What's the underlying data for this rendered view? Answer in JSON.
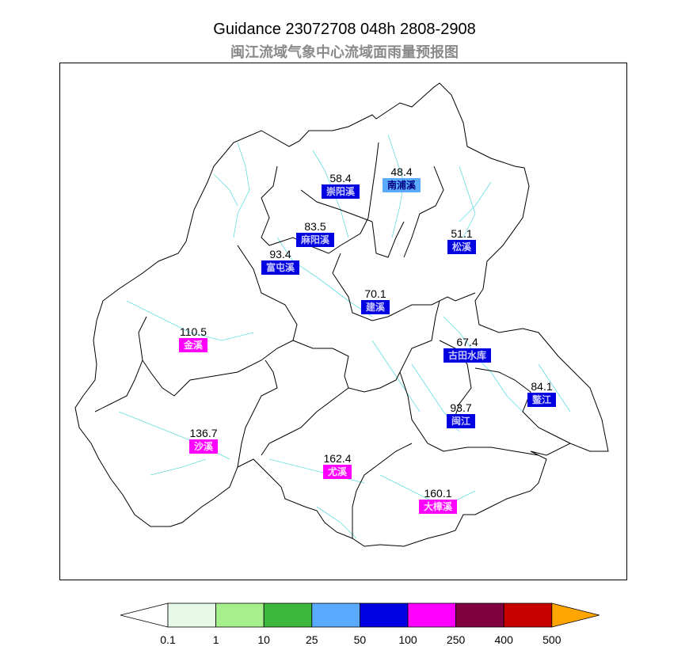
{
  "title": "Guidance 23072708 048h 2808-2908",
  "subtitle": "闽江流域气象中心流域面雨量预报图",
  "regions": [
    {
      "name": "崇阳溪",
      "value": "58.4",
      "category": "50-100",
      "color": "#0000e0",
      "text_color": "#c8c8ff"
    },
    {
      "name": "南浦溪",
      "value": "48.4",
      "category": "25-50",
      "color": "#5aabff",
      "text_color": "#000080"
    },
    {
      "name": "麻阳溪",
      "value": "83.5",
      "category": "50-100",
      "color": "#0000e0",
      "text_color": "#c8c8ff"
    },
    {
      "name": "富屯溪",
      "value": "93.4",
      "category": "50-100",
      "color": "#0000e0",
      "text_color": "#c8c8ff"
    },
    {
      "name": "松溪",
      "value": "51.1",
      "category": "50-100",
      "color": "#0000e0",
      "text_color": "#c8c8ff"
    },
    {
      "name": "建溪",
      "value": "70.1",
      "category": "50-100",
      "color": "#0000e0",
      "text_color": "#c8c8ff"
    },
    {
      "name": "金溪",
      "value": "110.5",
      "category": "100-250",
      "color": "#ff00ff",
      "text_color": "#ffe0ff"
    },
    {
      "name": "古田水库",
      "value": "67.4",
      "category": "50-100",
      "color": "#0000e0",
      "text_color": "#c8c8ff"
    },
    {
      "name": "鳌江",
      "value": "84.1",
      "category": "50-100",
      "color": "#0000e0",
      "text_color": "#c8c8ff"
    },
    {
      "name": "闽江",
      "value": "93.7",
      "category": "50-100",
      "color": "#0000e0",
      "text_color": "#c8c8ff"
    },
    {
      "name": "沙溪",
      "value": "136.7",
      "category": "100-250",
      "color": "#ff00ff",
      "text_color": "#ffe0ff"
    },
    {
      "name": "尤溪",
      "value": "162.4",
      "category": "100-250",
      "color": "#ff00ff",
      "text_color": "#ffe0ff"
    },
    {
      "name": "大樟溪",
      "value": "160.1",
      "category": "100-250",
      "color": "#ff00ff",
      "text_color": "#ffe0ff"
    }
  ],
  "colorbar": {
    "ticks": [
      "0.1",
      "1",
      "10",
      "25",
      "50",
      "100",
      "250",
      "400",
      "500"
    ],
    "colors": [
      "#ffffff",
      "#e6f8e6",
      "#a6f08c",
      "#3cb83c",
      "#5aabff",
      "#0000e0",
      "#ff00ff",
      "#800040",
      "#c80000",
      "#ffa500"
    ]
  },
  "colors": {
    "boundary": "#000000",
    "river": "#66dde0"
  }
}
